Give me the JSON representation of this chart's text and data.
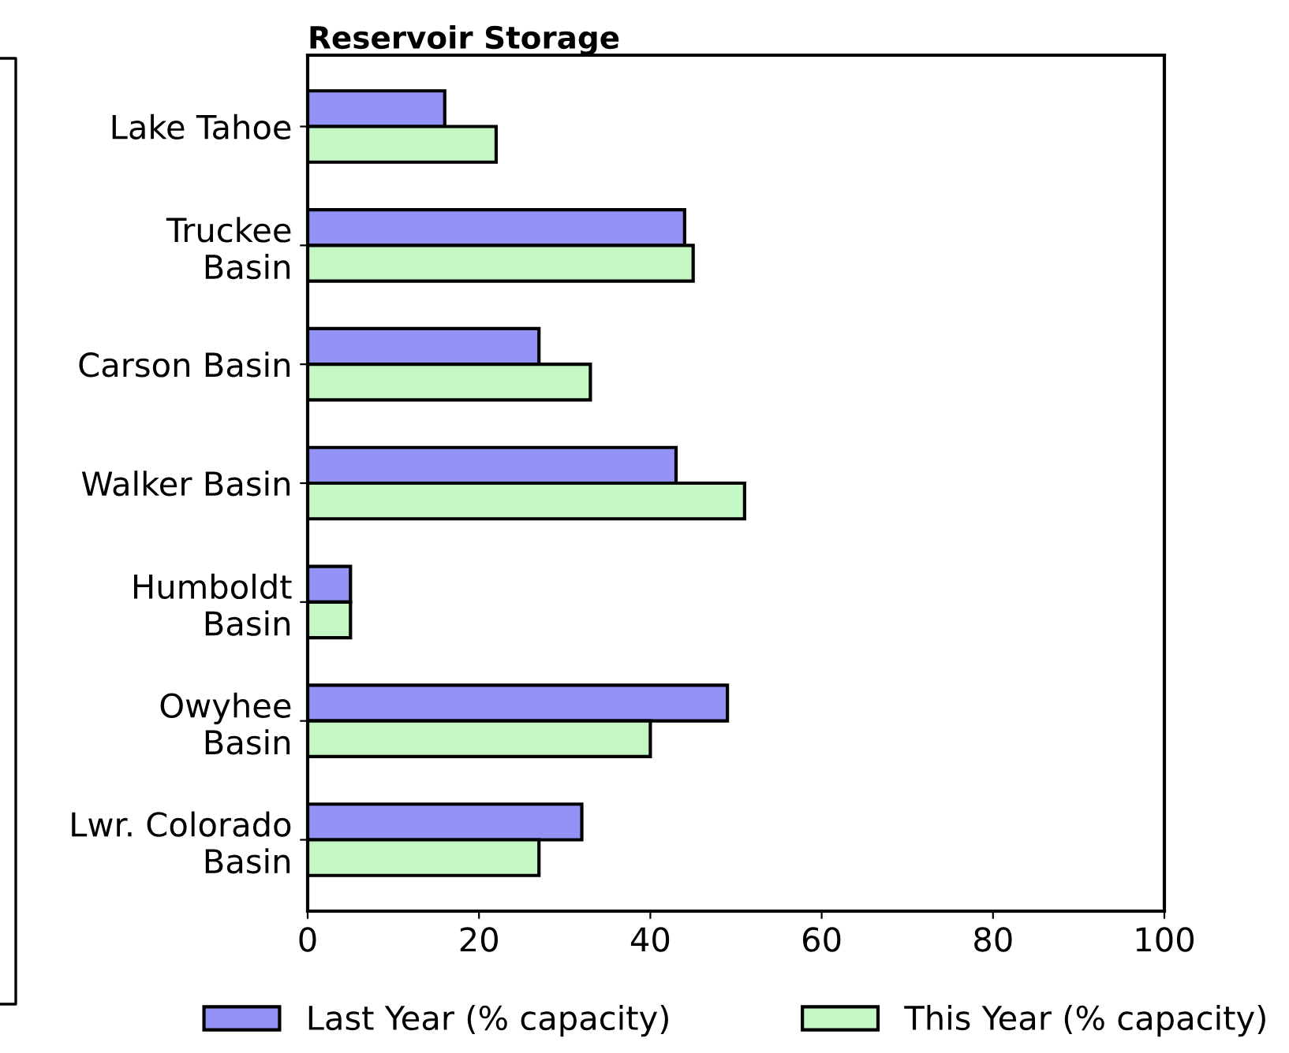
{
  "chart_data": {
    "type": "bar",
    "orientation": "horizontal",
    "title": "Reservoir Storage",
    "categories": [
      "Lake Tahoe",
      "Truckee\nBasin",
      "Carson Basin",
      "Walker Basin",
      "Humboldt\nBasin",
      "Owyhee\nBasin",
      "Lwr. Colorado\nBasin"
    ],
    "series": [
      {
        "name": "Last Year (% capacity)",
        "color": "#9393f5",
        "values": [
          16,
          44,
          27,
          43,
          5,
          49,
          32
        ]
      },
      {
        "name": "This Year (% capacity)",
        "color": "#c5f7c5",
        "values": [
          22,
          45,
          33,
          51,
          5,
          40,
          27
        ]
      }
    ],
    "xlim": [
      0,
      100
    ],
    "xticks": [
      0,
      20,
      40,
      60,
      80,
      100
    ],
    "grid": false,
    "legend": "bottom"
  }
}
